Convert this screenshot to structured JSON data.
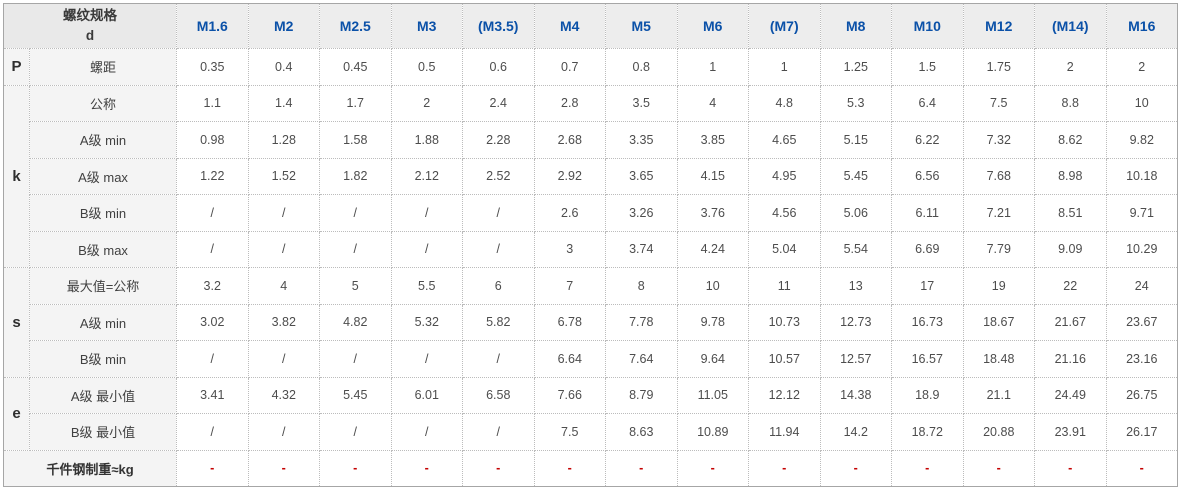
{
  "table": {
    "corner": {
      "line1": "螺纹规格",
      "line2": "d"
    },
    "columns": [
      "M1.6",
      "M2",
      "M2.5",
      "M3",
      "(M3.5)",
      "M4",
      "M5",
      "M6",
      "(M7)",
      "M8",
      "M10",
      "M12",
      "(M14)",
      "M16"
    ],
    "groups": [
      {
        "letter": "P",
        "rows": [
          {
            "label": "螺距",
            "values": [
              "0.35",
              "0.4",
              "0.45",
              "0.5",
              "0.6",
              "0.7",
              "0.8",
              "1",
              "1",
              "1.25",
              "1.5",
              "1.75",
              "2",
              "2"
            ]
          }
        ]
      },
      {
        "letter": "k",
        "rows": [
          {
            "label": "公称",
            "values": [
              "1.1",
              "1.4",
              "1.7",
              "2",
              "2.4",
              "2.8",
              "3.5",
              "4",
              "4.8",
              "5.3",
              "6.4",
              "7.5",
              "8.8",
              "10"
            ]
          },
          {
            "label": "A级 min",
            "values": [
              "0.98",
              "1.28",
              "1.58",
              "1.88",
              "2.28",
              "2.68",
              "3.35",
              "3.85",
              "4.65",
              "5.15",
              "6.22",
              "7.32",
              "8.62",
              "9.82"
            ]
          },
          {
            "label": "A级 max",
            "values": [
              "1.22",
              "1.52",
              "1.82",
              "2.12",
              "2.52",
              "2.92",
              "3.65",
              "4.15",
              "4.95",
              "5.45",
              "6.56",
              "7.68",
              "8.98",
              "10.18"
            ]
          },
          {
            "label": "B级 min",
            "values": [
              "/",
              "/",
              "/",
              "/",
              "/",
              "2.6",
              "3.26",
              "3.76",
              "4.56",
              "5.06",
              "6.11",
              "7.21",
              "8.51",
              "9.71"
            ]
          },
          {
            "label": "B级 max",
            "values": [
              "/",
              "/",
              "/",
              "/",
              "/",
              "3",
              "3.74",
              "4.24",
              "5.04",
              "5.54",
              "6.69",
              "7.79",
              "9.09",
              "10.29"
            ]
          }
        ]
      },
      {
        "letter": "s",
        "rows": [
          {
            "label": "最大值=公称",
            "values": [
              "3.2",
              "4",
              "5",
              "5.5",
              "6",
              "7",
              "8",
              "10",
              "11",
              "13",
              "17",
              "19",
              "22",
              "24"
            ]
          },
          {
            "label": "A级 min",
            "values": [
              "3.02",
              "3.82",
              "4.82",
              "5.32",
              "5.82",
              "6.78",
              "7.78",
              "9.78",
              "10.73",
              "12.73",
              "16.73",
              "18.67",
              "21.67",
              "23.67"
            ]
          },
          {
            "label": "B级 min",
            "values": [
              "/",
              "/",
              "/",
              "/",
              "/",
              "6.64",
              "7.64",
              "9.64",
              "10.57",
              "12.57",
              "16.57",
              "18.48",
              "21.16",
              "23.16"
            ]
          }
        ]
      },
      {
        "letter": "e",
        "rows": [
          {
            "label": "A级 最小值",
            "values": [
              "3.41",
              "4.32",
              "5.45",
              "6.01",
              "6.58",
              "7.66",
              "8.79",
              "11.05",
              "12.12",
              "14.38",
              "18.9",
              "21.1",
              "24.49",
              "26.75"
            ]
          },
          {
            "label": "B级 最小值",
            "values": [
              "/",
              "/",
              "/",
              "/",
              "/",
              "7.5",
              "8.63",
              "10.89",
              "11.94",
              "14.2",
              "18.72",
              "20.88",
              "23.91",
              "26.17"
            ]
          }
        ]
      },
      {
        "letter": "",
        "span_label": true,
        "bold_label": true,
        "rows": [
          {
            "label": "千件钢制重≈kg",
            "values": [
              "-",
              "-",
              "-",
              "-",
              "-",
              "-",
              "-",
              "-",
              "-",
              "-",
              "-",
              "-",
              "-",
              "-"
            ]
          }
        ]
      }
    ],
    "colors": {
      "header_blue": "#0b51a8",
      "dash_red": "#c40000",
      "header_bg": "#ededed",
      "label_bg": "#f4f4f4"
    }
  }
}
